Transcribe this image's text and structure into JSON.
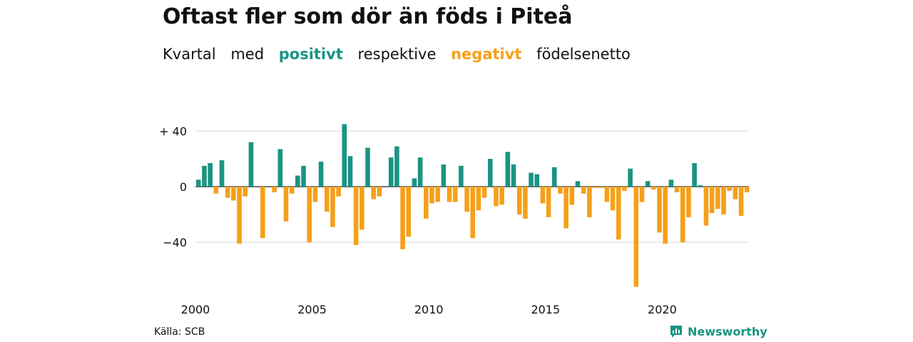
{
  "header": {
    "title": "Oftast fler som dör än föds i Piteå",
    "subtitle": {
      "word1": "Kvartal",
      "word2": "med",
      "positive": "positivt",
      "word3": "respektive",
      "negative": "negativt",
      "word4": "födelsenetto"
    }
  },
  "footer": {
    "source": "Källa: SCB",
    "brand": "Newsworthy",
    "brand_icon": "newsworthy-logo-icon"
  },
  "colors": {
    "positive": "#1a9483",
    "negative": "#f5a01a",
    "grid": "#d9d9d9",
    "axis": "#222222"
  },
  "chart_data": {
    "type": "bar",
    "title": "Oftast fler som dör än föds i Piteå",
    "subtitle": "Kvartal med positivt respektive negativt födelsenetto",
    "xlabel": "",
    "ylabel": "",
    "x_start": 2000,
    "x_step": "quarter",
    "ylim": [
      -72,
      48
    ],
    "yticks": [
      40,
      0,
      -40
    ],
    "ytick_labels": [
      "+ 40",
      "0",
      "−40"
    ],
    "xticks": [
      2000,
      2005,
      2010,
      2015,
      2020
    ],
    "xtick_labels": [
      "2000",
      "2005",
      "2010",
      "2015",
      "2020"
    ],
    "grid": true,
    "legend": "none",
    "values": [
      5,
      15,
      17,
      -5,
      19,
      -8,
      -10,
      -41,
      -7,
      32,
      0,
      -37,
      0,
      -4,
      27,
      -25,
      -5,
      8,
      15,
      -40,
      -11,
      18,
      -18,
      -29,
      -7,
      45,
      22,
      -42,
      -31,
      28,
      -9,
      -7,
      0,
      21,
      29,
      -45,
      -36,
      6,
      21,
      -23,
      -12,
      -11,
      16,
      -11,
      -11,
      15,
      -18,
      -37,
      -17,
      -8,
      20,
      -14,
      -13,
      25,
      16,
      -20,
      -23,
      10,
      9,
      -12,
      -22,
      14,
      -5,
      -30,
      -13,
      4,
      -5,
      -22,
      -1,
      -1,
      -11,
      -17,
      -38,
      -3,
      13,
      -72,
      -11,
      4,
      -2,
      -33,
      -41,
      5,
      -4,
      -40,
      -22,
      17,
      1,
      -28,
      -19,
      -16,
      -20,
      -3,
      -9,
      -21,
      -4
    ]
  }
}
